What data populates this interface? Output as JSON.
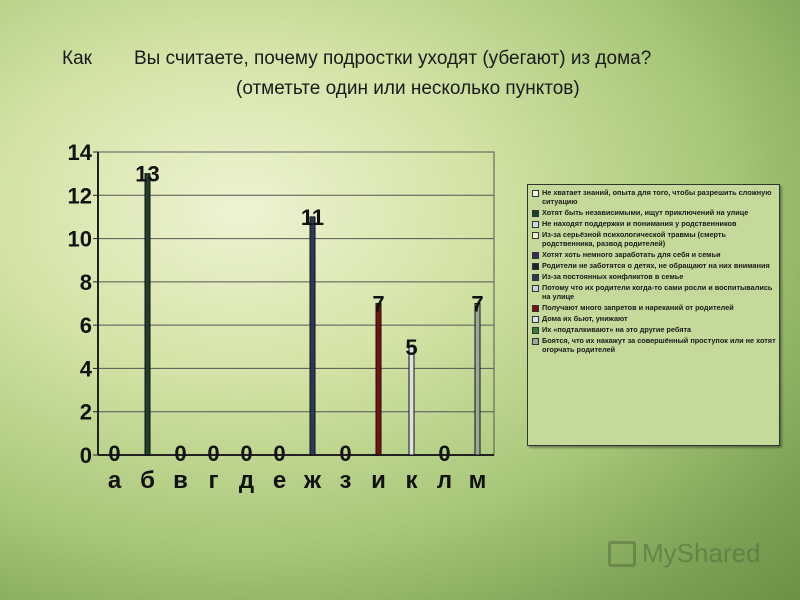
{
  "header": {
    "prefix": "Как",
    "question": "Вы считаете, почему подростки уходят (убегают) из дома?",
    "subtitle": "(отметьте один или несколько пунктов)"
  },
  "chart_data": {
    "type": "bar",
    "categories": [
      "а",
      "б",
      "в",
      "г",
      "д",
      "е",
      "ж",
      "з",
      "и",
      "к",
      "л",
      "м"
    ],
    "values": [
      0,
      13,
      0,
      0,
      0,
      0,
      11,
      0,
      7,
      5,
      0,
      7
    ],
    "ylim": [
      0,
      14
    ],
    "yticks": [
      0,
      2,
      4,
      6,
      8,
      10,
      12,
      14
    ],
    "grid": true,
    "legend_position": "right",
    "colors": [
      "#f2f2e0",
      "#1f3f2f",
      "#c8dce8",
      "#eeeecc",
      "#3a2a5a",
      "#202030",
      "#2a3a5a",
      "#c8d0e8",
      "#7a1010",
      "#e0e0e8",
      "#3a7a3a",
      "#9aaa9a"
    ],
    "legend": [
      "Не хватает знаний, опыта для того, чтобы разрешить сложную ситуацию",
      "Хотят быть независимыми, ищут приключений на улице",
      "Не находят поддержки и понимания у родственников",
      "Из-за серьёзной психологической травмы (смерть родственника, развод родителей)",
      "Хотят хоть немного заработать для себя и семьи",
      "Родители не заботятся о детях, не обращают на них внимания",
      "Из-за постоянных конфликтов в семье",
      "Потому что их родители когда-то сами росли и воспитывались на улице",
      "Получают много запретов и нареканий от родителей",
      "Дома их бьют, унижают",
      "Их «подталкивают» на это другие ребята",
      "Боятся, что их накажут за совершённый проступок или не хотят огорчать родителей"
    ]
  },
  "watermark": "MyShared"
}
